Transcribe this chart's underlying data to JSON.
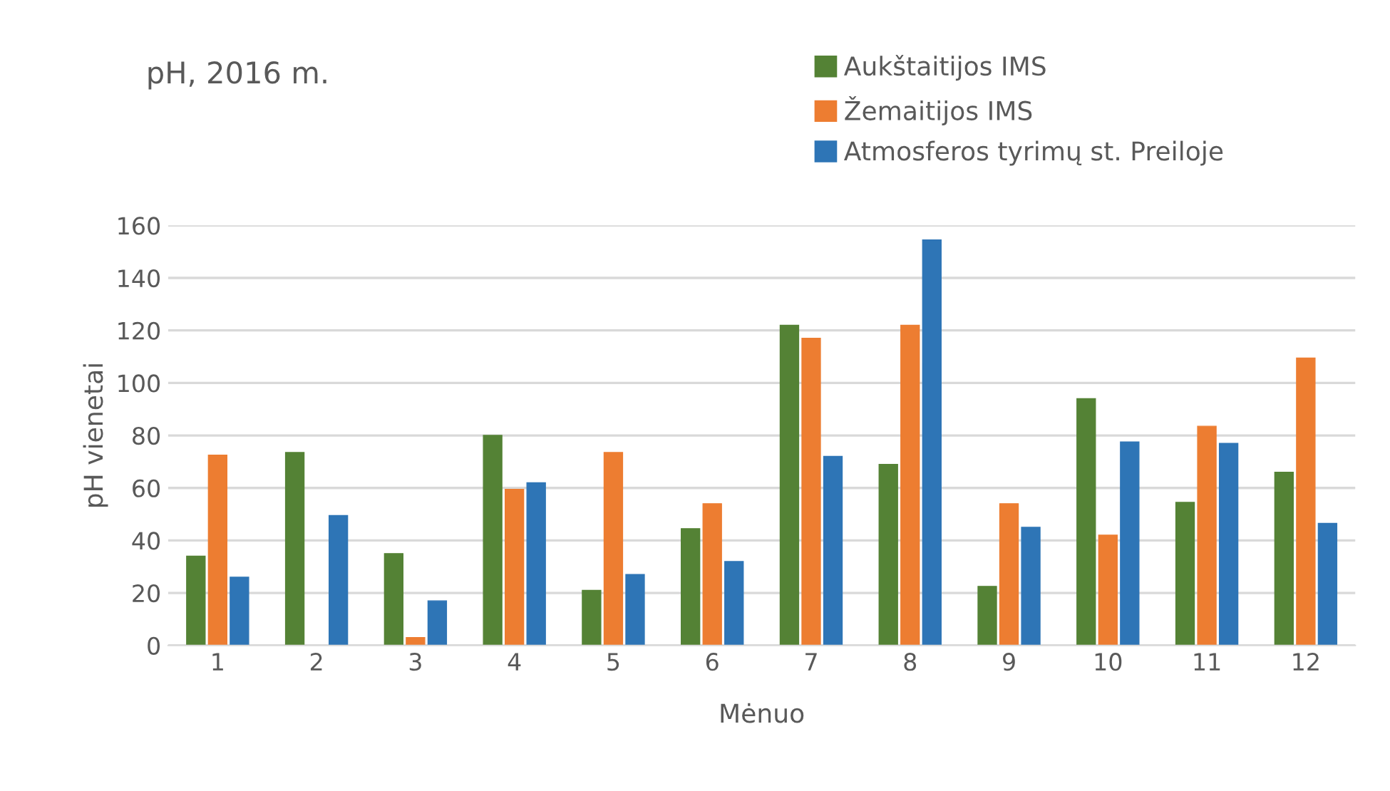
{
  "chart_data": {
    "type": "bar",
    "title": "pH, 2016 m.",
    "xlabel": "Mėnuo",
    "ylabel": "pH vienetai",
    "categories": [
      "1",
      "2",
      "3",
      "4",
      "5",
      "6",
      "7",
      "8",
      "9",
      "10",
      "11",
      "12"
    ],
    "series": [
      {
        "name": "Aukštaitijos IMS",
        "color": "#548235",
        "values": [
          34,
          73.5,
          35,
          80,
          21,
          44.5,
          122,
          69,
          22.5,
          94,
          54.5,
          66
        ]
      },
      {
        "name": "Žemaitijos IMS",
        "color": "#ed7d31",
        "values": [
          72.5,
          null,
          3,
          59.5,
          73.5,
          54,
          117,
          122,
          54,
          42,
          83.5,
          109.5
        ]
      },
      {
        "name": "Atmosferos tyrimų st. Preiloje",
        "color": "#2e75b6",
        "values": [
          26,
          49.5,
          17,
          62,
          27,
          32,
          72,
          154.5,
          45,
          77.5,
          77,
          46.5
        ]
      }
    ],
    "ylim": [
      0,
      160
    ],
    "yticks": [
      0,
      20,
      40,
      60,
      80,
      100,
      120,
      140,
      160
    ],
    "grid": "y",
    "legend": "top"
  }
}
